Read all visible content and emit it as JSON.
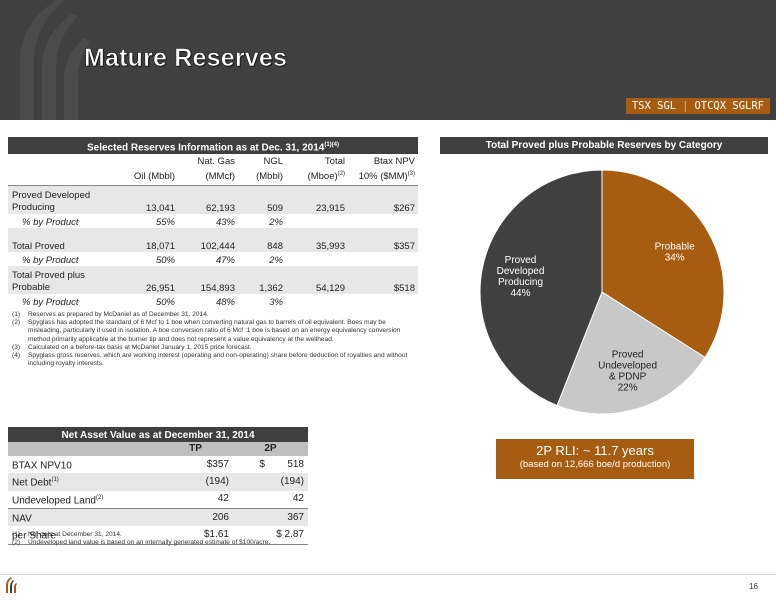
{
  "header": {
    "title": "Mature Reserves",
    "ticker_tsx": "TSX SGL",
    "ticker_sep": "|",
    "ticker_otc": "OTCQX SGLRF"
  },
  "reserves": {
    "heading": "Selected Reserves Information as at Dec. 31, 2014",
    "heading_sup": "(1)(4)",
    "columns": [
      {
        "line1": "",
        "line2": "Oil (Mbbl)",
        "sup": ""
      },
      {
        "line1": "Nat. Gas",
        "line2": "(MMcf)",
        "sup": ""
      },
      {
        "line1": "NGL",
        "line2": "(Mbbl)",
        "sup": ""
      },
      {
        "line1": "Total",
        "line2": "(Mboe)",
        "sup": "(2)"
      },
      {
        "line1": "Btax NPV",
        "line2": "10% ($MM)",
        "sup": "(3)"
      }
    ],
    "rows": [
      {
        "label": "Proved Developed Producing",
        "values": [
          "13,041",
          "62,193",
          "509",
          "23,915",
          "$267"
        ]
      },
      {
        "label": "% by Product",
        "values": [
          "55%",
          "43%",
          "2%",
          "",
          ""
        ]
      },
      {
        "label": "Total Proved",
        "values": [
          "18,071",
          "102,444",
          "848",
          "35,993",
          "$357"
        ]
      },
      {
        "label": "% by Product",
        "values": [
          "50%",
          "47%",
          "2%",
          "",
          ""
        ]
      },
      {
        "label": "Total Proved plus Probable",
        "values": [
          "26,951",
          "154,893",
          "1,362",
          "54,129",
          "$518"
        ]
      },
      {
        "label": "% by Product",
        "values": [
          "50%",
          "48%",
          "3%",
          "",
          ""
        ]
      }
    ],
    "notes": [
      {
        "key": "(1)",
        "text": "Reserves as prepared by McDaniel as of December 31, 2014."
      },
      {
        "key": "(2)",
        "text": "Spyglass has adopted the standard of 6 Mcf to 1 boe when converting natural gas to barrels of oil equivalent. Boes may be misleading, particularly if used in isolation. A boe conversion ratio of 6 Mcf :1 boe is based on an energy equivalency conversion method primarily applicable at the burner tip and does not represent a value equivalency at the wellhead."
      },
      {
        "key": "(3)",
        "text": "Calculated on a before-tax basis at McDaniel January 1, 2015 price forecast."
      },
      {
        "key": "(4)",
        "text": "Spyglass gross reserves, which are working interest (operating and non-operating) share before deduction of royalties and without including royalty interests."
      }
    ]
  },
  "nav": {
    "heading": "Net Asset Value as at December 31, 2014",
    "col_tp": "TP",
    "col_2p": "2P",
    "rows": [
      {
        "label": "BTAX NPV10",
        "sup": "",
        "tp": "$357",
        "p2_prefix": "$",
        "p2": "518"
      },
      {
        "label": "Net Debt",
        "sup": "(1)",
        "tp": "(194)",
        "p2_prefix": "",
        "p2": "(194)"
      },
      {
        "label": "Undeveloped Land",
        "sup": "(2)",
        "tp": "42",
        "p2_prefix": "",
        "p2": "42"
      },
      {
        "label": "NAV",
        "sup": "",
        "tp": "206",
        "p2_prefix": "",
        "p2": "367"
      },
      {
        "label": "per Share",
        "sup": "",
        "tp": "$1.61",
        "p2_prefix": "",
        "p2": "$ 2.87"
      }
    ],
    "notes": [
      {
        "key": "(1)",
        "text": "Net debt at December 31, 2014."
      },
      {
        "key": "(2)",
        "text": "Undeveloped land value is based on an internally generated estimate of $100/acre."
      }
    ]
  },
  "chart_data": {
    "type": "pie",
    "title": "Total Proved plus Probable Reserves by Category",
    "slices": [
      {
        "label": "Probable",
        "value": 34,
        "pct_label": "34%",
        "color": "#a65d12",
        "text_color": "#ffffff"
      },
      {
        "label": "Proved Undeveloped & PDNP",
        "value": 22,
        "pct_label": "22%",
        "color": "#c8c8c8",
        "text_color": "#222222"
      },
      {
        "label": "Proved Developed Producing",
        "value": 44,
        "pct_label": "44%",
        "color": "#404041",
        "text_color": "#ffffff"
      }
    ]
  },
  "rli": {
    "headline": "2P RLI:  ~ 11.7 years",
    "sub": "(based on 12,666 boe/d production)"
  },
  "footer": {
    "page": "16"
  }
}
